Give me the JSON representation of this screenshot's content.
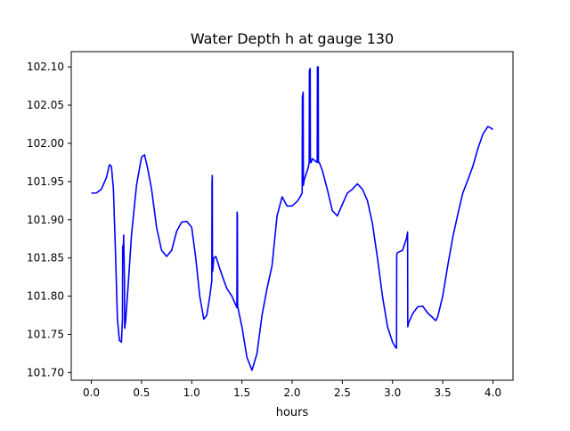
{
  "chart_data": {
    "type": "line",
    "title": "Water Depth h at gauge 130",
    "xlabel": "hours",
    "ylabel": "",
    "xlim": [
      -0.2,
      4.2
    ],
    "ylim": [
      101.69,
      102.12
    ],
    "x_ticks": [
      0.0,
      0.5,
      1.0,
      1.5,
      2.0,
      2.5,
      3.0,
      3.5,
      4.0
    ],
    "x_tick_labels": [
      "0.0",
      "0.5",
      "1.0",
      "1.5",
      "2.0",
      "2.5",
      "3.0",
      "3.5",
      "4.0"
    ],
    "y_ticks": [
      101.7,
      101.75,
      101.8,
      101.85,
      101.9,
      101.95,
      102.0,
      102.05,
      102.1
    ],
    "y_tick_labels": [
      "101.70",
      "101.75",
      "101.80",
      "101.85",
      "101.90",
      "101.95",
      "102.00",
      "102.05",
      "102.10"
    ],
    "grid": false,
    "legend": "none",
    "series": [
      {
        "color": "#0000ff",
        "x": [
          0.0,
          0.05,
          0.1,
          0.15,
          0.18,
          0.2,
          0.22,
          0.24,
          0.26,
          0.28,
          0.3,
          0.31,
          0.312,
          0.32,
          0.322,
          0.33,
          0.332,
          0.34,
          0.37,
          0.4,
          0.45,
          0.5,
          0.53,
          0.56,
          0.6,
          0.65,
          0.7,
          0.75,
          0.8,
          0.85,
          0.9,
          0.95,
          1.0,
          1.04,
          1.08,
          1.12,
          1.15,
          1.18,
          1.2,
          1.202,
          1.205,
          1.207,
          1.21,
          1.22,
          1.24,
          1.27,
          1.3,
          1.35,
          1.4,
          1.45,
          1.452,
          1.455,
          1.457,
          1.46,
          1.5,
          1.55,
          1.6,
          1.65,
          1.7,
          1.75,
          1.8,
          1.85,
          1.9,
          1.95,
          2.0,
          2.05,
          2.08,
          2.1,
          2.102,
          2.11,
          2.112,
          2.12,
          2.14,
          2.16,
          2.17,
          2.172,
          2.18,
          2.182,
          2.19,
          2.2,
          2.22,
          2.24,
          2.25,
          2.252,
          2.26,
          2.262,
          2.27,
          2.3,
          2.35,
          2.4,
          2.45,
          2.5,
          2.55,
          2.6,
          2.65,
          2.7,
          2.75,
          2.8,
          2.85,
          2.9,
          2.95,
          3.0,
          3.03,
          3.04,
          3.042,
          3.05,
          3.1,
          3.14,
          3.15,
          3.152,
          3.16,
          3.2,
          3.25,
          3.3,
          3.35,
          3.4,
          3.43,
          3.45,
          3.5,
          3.55,
          3.6,
          3.65,
          3.7,
          3.75,
          3.8,
          3.85,
          3.9,
          3.95,
          3.98,
          4.0
        ],
        "y": [
          101.935,
          101.935,
          101.94,
          101.955,
          101.972,
          101.97,
          101.94,
          101.86,
          101.77,
          101.742,
          101.74,
          101.77,
          101.865,
          101.868,
          101.88,
          101.82,
          101.758,
          101.765,
          101.82,
          101.88,
          101.945,
          101.982,
          101.985,
          101.968,
          101.94,
          101.89,
          101.86,
          101.852,
          101.86,
          101.885,
          101.897,
          101.898,
          101.89,
          101.85,
          101.8,
          101.77,
          101.775,
          101.8,
          101.82,
          101.948,
          101.958,
          101.832,
          101.835,
          101.85,
          101.852,
          101.84,
          101.828,
          101.81,
          101.8,
          101.785,
          101.91,
          101.905,
          101.79,
          101.785,
          101.76,
          101.72,
          101.703,
          101.725,
          101.775,
          101.81,
          101.84,
          101.905,
          101.93,
          101.918,
          101.918,
          101.924,
          101.93,
          101.935,
          102.06,
          102.067,
          101.945,
          101.952,
          101.96,
          101.968,
          101.975,
          102.095,
          102.098,
          101.975,
          101.975,
          101.98,
          101.978,
          101.976,
          101.975,
          102.1,
          102.1,
          101.975,
          101.975,
          101.965,
          101.94,
          101.912,
          101.905,
          101.92,
          101.935,
          101.94,
          101.947,
          101.94,
          101.925,
          101.895,
          101.85,
          101.8,
          101.76,
          101.74,
          101.733,
          101.732,
          101.855,
          101.857,
          101.86,
          101.876,
          101.884,
          101.76,
          101.765,
          101.777,
          101.786,
          101.787,
          101.778,
          101.772,
          101.768,
          101.773,
          101.8,
          101.84,
          101.877,
          101.907,
          101.935,
          101.952,
          101.97,
          101.993,
          102.012,
          102.022,
          102.02,
          102.018
        ]
      }
    ]
  }
}
